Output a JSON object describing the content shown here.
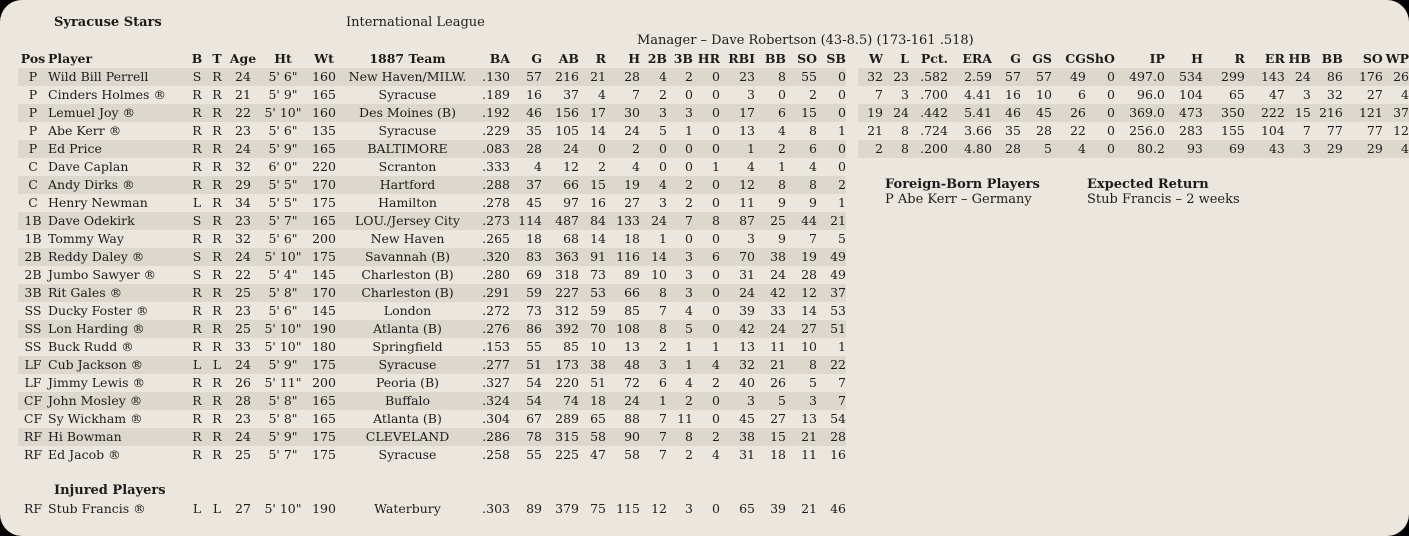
{
  "header": {
    "team": "Syracuse Stars",
    "league": "International League",
    "manager": "Manager – Dave Robertson (43-8.5)  (173-161  .518)"
  },
  "batting": {
    "columns": [
      "Pos",
      "Player",
      "B",
      "T",
      "Age",
      "Ht",
      "Wt",
      "1887 Team",
      "BA",
      "G",
      "AB",
      "R",
      "H",
      "2B",
      "3B",
      "HR",
      "RBI",
      "BB",
      "SO",
      "SB"
    ],
    "rows": [
      [
        "P",
        "Wild Bill Perrell",
        "S",
        "R",
        "24",
        "5' 6\"",
        "160",
        "New Haven/MILW.",
        ".130",
        "57",
        "216",
        "21",
        "28",
        "4",
        "2",
        "0",
        "23",
        "8",
        "55",
        "0"
      ],
      [
        "P",
        "Cinders Holmes ®",
        "R",
        "R",
        "21",
        "5' 9\"",
        "165",
        "Syracuse",
        ".189",
        "16",
        "37",
        "4",
        "7",
        "2",
        "0",
        "0",
        "3",
        "0",
        "2",
        "0"
      ],
      [
        "P",
        "Lemuel Joy ®",
        "R",
        "R",
        "22",
        "5' 10\"",
        "160",
        "Des Moines (B)",
        ".192",
        "46",
        "156",
        "17",
        "30",
        "3",
        "3",
        "0",
        "17",
        "6",
        "15",
        "0"
      ],
      [
        "P",
        "Abe Kerr ®",
        "R",
        "R",
        "23",
        "5' 6\"",
        "135",
        "Syracuse",
        ".229",
        "35",
        "105",
        "14",
        "24",
        "5",
        "1",
        "0",
        "13",
        "4",
        "8",
        "1"
      ],
      [
        "P",
        "Ed Price",
        "R",
        "R",
        "24",
        "5' 9\"",
        "165",
        "BALTIMORE",
        ".083",
        "28",
        "24",
        "0",
        "2",
        "0",
        "0",
        "0",
        "1",
        "2",
        "6",
        "0"
      ],
      [
        "C",
        "Dave Caplan",
        "R",
        "R",
        "32",
        "6' 0\"",
        "220",
        "Scranton",
        ".333",
        "4",
        "12",
        "2",
        "4",
        "0",
        "0",
        "1",
        "4",
        "1",
        "4",
        "0"
      ],
      [
        "C",
        "Andy Dirks ®",
        "R",
        "R",
        "29",
        "5' 5\"",
        "170",
        "Hartford",
        ".288",
        "37",
        "66",
        "15",
        "19",
        "4",
        "2",
        "0",
        "12",
        "8",
        "8",
        "2"
      ],
      [
        "C",
        "Henry Newman",
        "L",
        "R",
        "34",
        "5' 5\"",
        "175",
        "Hamilton",
        ".278",
        "45",
        "97",
        "16",
        "27",
        "3",
        "2",
        "0",
        "11",
        "9",
        "9",
        "1"
      ],
      [
        "1B",
        "Dave Odekirk",
        "S",
        "R",
        "23",
        "5' 7\"",
        "165",
        "LOU./Jersey City",
        ".273",
        "114",
        "487",
        "84",
        "133",
        "24",
        "7",
        "8",
        "87",
        "25",
        "44",
        "21"
      ],
      [
        "1B",
        "Tommy Way",
        "R",
        "R",
        "32",
        "5' 6\"",
        "200",
        "New Haven",
        ".265",
        "18",
        "68",
        "14",
        "18",
        "1",
        "0",
        "0",
        "3",
        "9",
        "7",
        "5"
      ],
      [
        "2B",
        "Reddy Daley ®",
        "S",
        "R",
        "24",
        "5' 10\"",
        "175",
        "Savannah (B)",
        ".320",
        "83",
        "363",
        "91",
        "116",
        "14",
        "3",
        "6",
        "70",
        "38",
        "19",
        "49"
      ],
      [
        "2B",
        "Jumbo Sawyer ®",
        "S",
        "R",
        "22",
        "5' 4\"",
        "145",
        "Charleston (B)",
        ".280",
        "69",
        "318",
        "73",
        "89",
        "10",
        "3",
        "0",
        "31",
        "24",
        "28",
        "49"
      ],
      [
        "3B",
        "Rit Gales ®",
        "R",
        "R",
        "25",
        "5' 8\"",
        "170",
        "Charleston (B)",
        ".291",
        "59",
        "227",
        "53",
        "66",
        "8",
        "3",
        "0",
        "24",
        "42",
        "12",
        "37"
      ],
      [
        "SS",
        "Ducky Foster ®",
        "R",
        "R",
        "23",
        "5' 6\"",
        "145",
        "London",
        ".272",
        "73",
        "312",
        "59",
        "85",
        "7",
        "4",
        "0",
        "39",
        "33",
        "14",
        "53"
      ],
      [
        "SS",
        "Lon Harding ®",
        "R",
        "R",
        "25",
        "5' 10\"",
        "190",
        "Atlanta (B)",
        ".276",
        "86",
        "392",
        "70",
        "108",
        "8",
        "5",
        "0",
        "42",
        "24",
        "27",
        "51"
      ],
      [
        "SS",
        "Buck Rudd ®",
        "R",
        "R",
        "33",
        "5' 10\"",
        "180",
        "Springfield",
        ".153",
        "55",
        "85",
        "10",
        "13",
        "2",
        "1",
        "1",
        "13",
        "11",
        "10",
        "1"
      ],
      [
        "LF",
        "Cub Jackson ®",
        "L",
        "L",
        "24",
        "5' 9\"",
        "175",
        "Syracuse",
        ".277",
        "51",
        "173",
        "38",
        "48",
        "3",
        "1",
        "4",
        "32",
        "21",
        "8",
        "22"
      ],
      [
        "LF",
        "Jimmy Lewis ®",
        "R",
        "R",
        "26",
        "5' 11\"",
        "200",
        "Peoria (B)",
        ".327",
        "54",
        "220",
        "51",
        "72",
        "6",
        "4",
        "2",
        "40",
        "26",
        "5",
        "7"
      ],
      [
        "CF",
        "John Mosley ®",
        "R",
        "R",
        "28",
        "5' 8\"",
        "165",
        "Buffalo",
        ".324",
        "54",
        "74",
        "18",
        "24",
        "1",
        "2",
        "0",
        "3",
        "5",
        "3",
        "7"
      ],
      [
        "CF",
        "Sy Wickham ®",
        "R",
        "R",
        "23",
        "5' 8\"",
        "165",
        "Atlanta (B)",
        ".304",
        "67",
        "289",
        "65",
        "88",
        "7",
        "11",
        "0",
        "45",
        "27",
        "13",
        "54"
      ],
      [
        "RF",
        "Hi Bowman",
        "R",
        "R",
        "24",
        "5' 9\"",
        "175",
        "CLEVELAND",
        ".286",
        "78",
        "315",
        "58",
        "90",
        "7",
        "8",
        "2",
        "38",
        "15",
        "21",
        "28"
      ],
      [
        "RF",
        "Ed Jacob ®",
        "R",
        "R",
        "25",
        "5' 7\"",
        "175",
        "Syracuse",
        ".258",
        "55",
        "225",
        "47",
        "58",
        "7",
        "2",
        "4",
        "31",
        "18",
        "11",
        "16"
      ]
    ]
  },
  "pitching": {
    "columns": [
      "W",
      "L",
      "Pct.",
      "ERA",
      "G",
      "GS",
      "CG",
      "ShO",
      "IP",
      "H",
      "R",
      "ER",
      "HB",
      "BB",
      "SO",
      "WP"
    ],
    "rows": [
      [
        "32",
        "23",
        ".582",
        "2.59",
        "57",
        "57",
        "49",
        "0",
        "497.0",
        "534",
        "299",
        "143",
        "24",
        "86",
        "176",
        "26"
      ],
      [
        "7",
        "3",
        ".700",
        "4.41",
        "16",
        "10",
        "6",
        "0",
        "96.0",
        "104",
        "65",
        "47",
        "3",
        "32",
        "27",
        "4"
      ],
      [
        "19",
        "24",
        ".442",
        "5.41",
        "46",
        "45",
        "26",
        "0",
        "369.0",
        "473",
        "350",
        "222",
        "15",
        "216",
        "121",
        "37"
      ],
      [
        "21",
        "8",
        ".724",
        "3.66",
        "35",
        "28",
        "22",
        "0",
        "256.0",
        "283",
        "155",
        "104",
        "7",
        "77",
        "77",
        "12"
      ],
      [
        "2",
        "8",
        ".200",
        "4.80",
        "28",
        "5",
        "4",
        "0",
        "80.2",
        "93",
        "69",
        "43",
        "3",
        "29",
        "29",
        "4"
      ]
    ]
  },
  "injured": {
    "title": "Injured Players",
    "rows": [
      [
        "RF",
        "Stub Francis ®",
        "L",
        "L",
        "27",
        "5' 10\"",
        "190",
        "Waterbury",
        ".303",
        "89",
        "379",
        "75",
        "115",
        "12",
        "3",
        "0",
        "65",
        "39",
        "21",
        "46"
      ]
    ]
  },
  "foreign_born": {
    "title": "Foreign-Born Players",
    "items": [
      "P Abe Kerr – Germany"
    ]
  },
  "expected_return": {
    "title": "Expected Return",
    "items": [
      "Stub Francis – 2 weeks"
    ]
  },
  "colors": {
    "background": "#ece7de",
    "stripe": "#ddd8ce",
    "text": "#1c1c1c"
  }
}
